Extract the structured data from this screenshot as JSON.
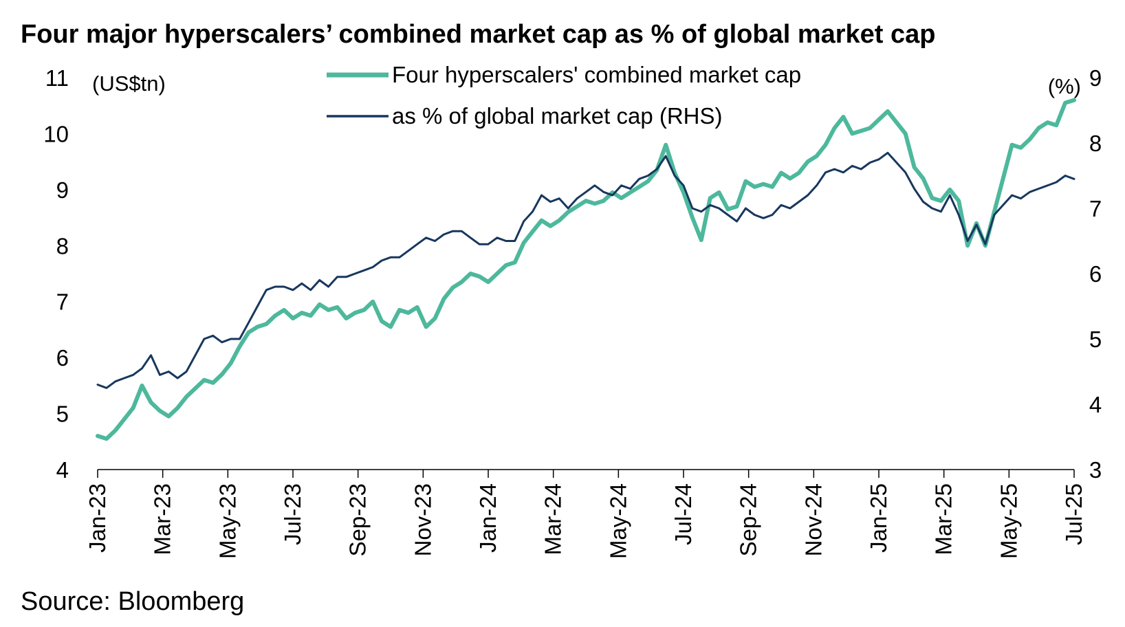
{
  "chart_data": {
    "type": "line",
    "title": "Four major hyperscalers’ combined market cap as % of global market cap",
    "source": "Source: Bloomberg",
    "left_axis": {
      "unit": "(US$tn)",
      "range": [
        4,
        11
      ],
      "ticks": [
        "4",
        "5",
        "6",
        "7",
        "8",
        "9",
        "10",
        "11"
      ]
    },
    "right_axis": {
      "unit": "(%)",
      "range": [
        3,
        9
      ],
      "ticks": [
        "3",
        "4",
        "5",
        "6",
        "7",
        "8",
        "9"
      ]
    },
    "x_ticks": [
      "Jan-23",
      "Mar-23",
      "May-23",
      "Jul-23",
      "Sep-23",
      "Nov-23",
      "Jan-24",
      "Mar-24",
      "May-24",
      "Jul-24",
      "Sep-24",
      "Nov-24",
      "Jan-25",
      "Mar-25",
      "May-25",
      "Jul-25"
    ],
    "grid": false,
    "legend_placement": "top-center",
    "series": [
      {
        "name": "Four hyperscalers' combined market cap",
        "axis": "left",
        "color": "#4db89c",
        "values": [
          4.6,
          4.55,
          4.7,
          4.9,
          5.1,
          5.5,
          5.2,
          5.05,
          4.95,
          5.1,
          5.3,
          5.45,
          5.6,
          5.55,
          5.7,
          5.9,
          6.2,
          6.45,
          6.55,
          6.6,
          6.75,
          6.85,
          6.7,
          6.8,
          6.75,
          6.95,
          6.85,
          6.9,
          6.7,
          6.8,
          6.85,
          7.0,
          6.65,
          6.55,
          6.85,
          6.8,
          6.9,
          6.55,
          6.7,
          7.05,
          7.25,
          7.35,
          7.5,
          7.45,
          7.35,
          7.5,
          7.65,
          7.7,
          8.05,
          8.25,
          8.45,
          8.35,
          8.45,
          8.6,
          8.7,
          8.8,
          8.75,
          8.8,
          8.95,
          8.85,
          8.95,
          9.05,
          9.15,
          9.35,
          9.8,
          9.3,
          8.95,
          8.5,
          8.1,
          8.85,
          8.95,
          8.65,
          8.7,
          9.15,
          9.05,
          9.1,
          9.05,
          9.3,
          9.2,
          9.3,
          9.5,
          9.6,
          9.8,
          10.1,
          10.3,
          10.0,
          10.05,
          10.1,
          10.25,
          10.4,
          10.2,
          10.0,
          9.4,
          9.2,
          8.85,
          8.8,
          9.0,
          8.8,
          8.0,
          8.4,
          8.0,
          8.6,
          9.2,
          9.8,
          9.75,
          9.9,
          10.1,
          10.2,
          10.15,
          10.55,
          10.6
        ]
      },
      {
        "name": "as % of global market cap (RHS)",
        "axis": "right",
        "color": "#17375e",
        "values": [
          4.3,
          4.25,
          4.35,
          4.4,
          4.45,
          4.55,
          4.75,
          4.45,
          4.5,
          4.4,
          4.5,
          4.75,
          5.0,
          5.05,
          4.95,
          5.0,
          5.0,
          5.25,
          5.5,
          5.75,
          5.8,
          5.8,
          5.75,
          5.85,
          5.75,
          5.9,
          5.8,
          5.95,
          5.95,
          6.0,
          6.05,
          6.1,
          6.2,
          6.25,
          6.25,
          6.35,
          6.45,
          6.55,
          6.5,
          6.6,
          6.65,
          6.65,
          6.55,
          6.45,
          6.45,
          6.55,
          6.5,
          6.5,
          6.8,
          6.95,
          7.2,
          7.1,
          7.15,
          7.0,
          7.15,
          7.25,
          7.35,
          7.25,
          7.2,
          7.35,
          7.3,
          7.45,
          7.5,
          7.6,
          7.8,
          7.5,
          7.35,
          7.0,
          6.95,
          7.05,
          7.0,
          6.9,
          6.8,
          7.0,
          6.9,
          6.85,
          6.9,
          7.05,
          7.0,
          7.1,
          7.2,
          7.35,
          7.55,
          7.6,
          7.55,
          7.65,
          7.6,
          7.7,
          7.75,
          7.85,
          7.7,
          7.55,
          7.3,
          7.1,
          7.0,
          6.95,
          7.2,
          6.9,
          6.5,
          6.75,
          6.45,
          6.9,
          7.05,
          7.2,
          7.15,
          7.25,
          7.3,
          7.35,
          7.4,
          7.5,
          7.45
        ]
      }
    ]
  }
}
